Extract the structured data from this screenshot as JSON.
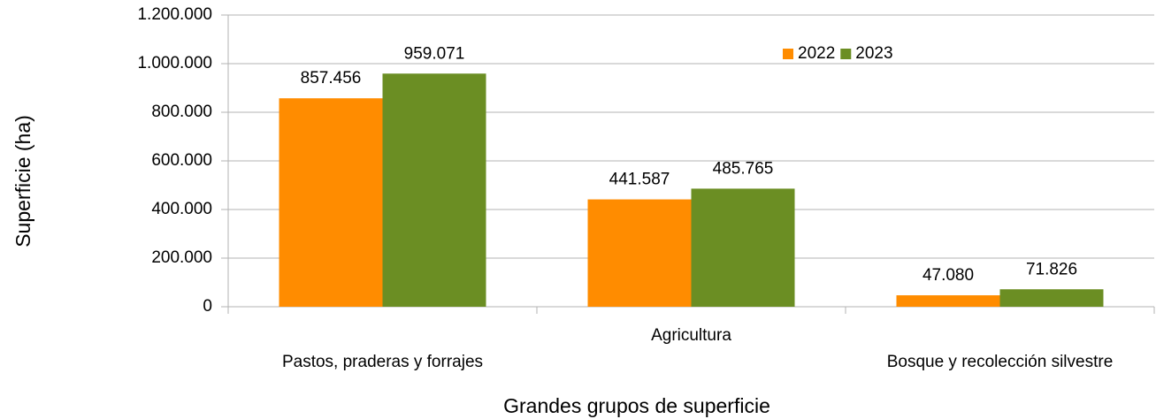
{
  "chart_data": {
    "type": "bar",
    "x_label": "Grandes grupos de superficie",
    "y_label": "Superficie (ha)",
    "categories": [
      "Pastos, praderas y forrajes",
      "Agricultura",
      "Bosque y recolección silvestre"
    ],
    "series": [
      {
        "name": "2022",
        "color": "#ff8c00",
        "values": [
          857456,
          441587,
          47080
        ],
        "value_labels": [
          "857.456",
          "441.587",
          "47.080"
        ]
      },
      {
        "name": "2023",
        "color": "#6b8e23",
        "values": [
          959071,
          485765,
          71826
        ],
        "value_labels": [
          "959.071",
          "485.765",
          "71.826"
        ]
      }
    ],
    "ylim": [
      0,
      1200000
    ],
    "yticks": [
      0,
      {
        "value": 200000,
        "label": "200.000"
      },
      {
        "value": 400000,
        "label": "400.000"
      },
      {
        "value": 600000,
        "label": "600.000"
      },
      {
        "value": 800000,
        "label": "800.000"
      },
      {
        "value": 1000000,
        "label": "1.000.000"
      },
      {
        "value": 1200000,
        "label": "1.200.000"
      }
    ],
    "grid": true,
    "legend": "top"
  }
}
